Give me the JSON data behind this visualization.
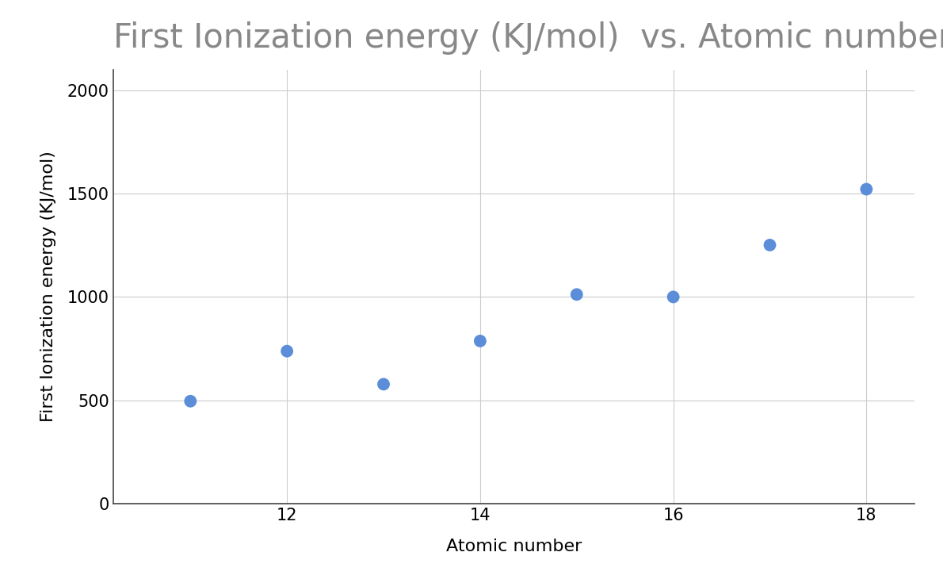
{
  "title": "First Ionization energy (KJ/mol)  vs. Atomic number",
  "xlabel": "Atomic number",
  "ylabel": "First Ionization energy (KJ/mol)",
  "x": [
    11,
    12,
    13,
    14,
    15,
    16,
    17,
    18
  ],
  "y": [
    496,
    738,
    578,
    787,
    1012,
    1000,
    1251,
    1521
  ],
  "xlim": [
    10.2,
    18.5
  ],
  "ylim": [
    0,
    2100
  ],
  "xticks": [
    12,
    14,
    16,
    18
  ],
  "yticks": [
    0,
    500,
    1000,
    1500,
    2000
  ],
  "marker_color": "#5b8dd9",
  "marker_size": 130,
  "background_color": "#ffffff",
  "title_color": "#888888",
  "label_color": "#000000",
  "tick_color": "#000000",
  "grid_color": "#cccccc",
  "spine_color": "#444444",
  "title_fontsize": 30,
  "label_fontsize": 16,
  "tick_fontsize": 15
}
